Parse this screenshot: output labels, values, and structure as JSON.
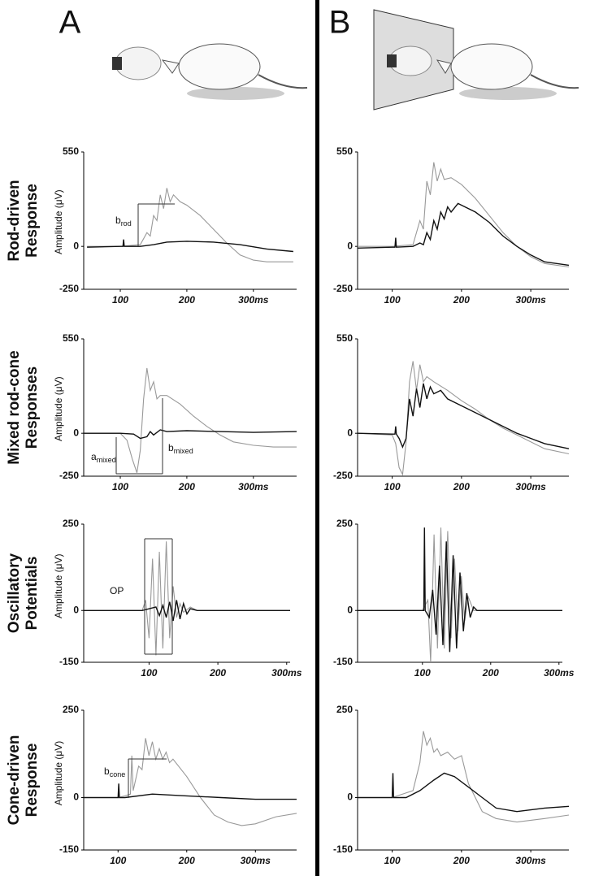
{
  "panels": [
    "A",
    "B"
  ],
  "rows": [
    [
      "Rod-driven",
      "Response"
    ],
    [
      "Mixed rod-cone",
      "Responses"
    ],
    [
      "Oscillatory",
      "Potentials"
    ],
    [
      "Cone-driven",
      "Response"
    ]
  ],
  "chart_data": [
    {
      "type": "line",
      "ylabel": "Amplitude (μV)",
      "xlim": [
        45,
        365
      ],
      "ylim": [
        -250,
        550
      ],
      "yticks": [
        -250,
        0,
        550
      ],
      "xticks": [
        100,
        200,
        {
          "value": 300,
          "label": "300ms"
        }
      ],
      "annotations": [
        {
          "text": "b",
          "sub": "rod"
        }
      ],
      "series": [
        {
          "color": "#999999",
          "x": [
            50,
            100,
            130,
            140,
            145,
            150,
            155,
            160,
            165,
            170,
            175,
            180,
            190,
            200,
            220,
            240,
            260,
            280,
            300,
            320,
            360
          ],
          "values": [
            0,
            0,
            10,
            80,
            60,
            180,
            150,
            300,
            220,
            340,
            260,
            300,
            260,
            240,
            180,
            100,
            20,
            -50,
            -80,
            -90,
            -90
          ]
        },
        {
          "color": "#111111",
          "x": [
            50,
            100,
            104,
            105,
            106,
            130,
            150,
            170,
            200,
            240,
            280,
            320,
            360
          ],
          "values": [
            -5,
            0,
            0,
            40,
            0,
            0,
            10,
            25,
            30,
            25,
            10,
            -15,
            -30
          ]
        }
      ]
    },
    {
      "type": "line",
      "xlim": [
        50,
        355
      ],
      "ylim": [
        -250,
        550
      ],
      "yticks": [
        -250,
        0,
        550
      ],
      "xticks": [
        100,
        200,
        {
          "value": 300,
          "label": "300ms"
        }
      ],
      "series": [
        {
          "color": "#999999",
          "x": [
            50,
            100,
            130,
            140,
            145,
            150,
            155,
            160,
            165,
            170,
            175,
            185,
            200,
            220,
            240,
            260,
            280,
            300,
            320,
            355
          ],
          "values": [
            0,
            0,
            10,
            150,
            100,
            380,
            300,
            490,
            380,
            450,
            390,
            400,
            360,
            280,
            180,
            80,
            0,
            -60,
            -100,
            -120
          ]
        },
        {
          "color": "#111111",
          "x": [
            50,
            100,
            104,
            105,
            106,
            130,
            140,
            145,
            150,
            155,
            160,
            165,
            170,
            175,
            180,
            185,
            195,
            220,
            240,
            260,
            280,
            300,
            320,
            355
          ],
          "values": [
            -10,
            -5,
            -5,
            50,
            -5,
            0,
            20,
            10,
            80,
            40,
            150,
            100,
            200,
            160,
            230,
            200,
            250,
            200,
            140,
            60,
            0,
            -50,
            -90,
            -110
          ]
        }
      ]
    },
    {
      "type": "line",
      "ylabel": "Amplitude (μV)",
      "xlim": [
        45,
        365
      ],
      "ylim": [
        -250,
        550
      ],
      "yticks": [
        -250,
        0,
        550
      ],
      "xticks": [
        100,
        200,
        {
          "value": 300,
          "label": "300ms"
        }
      ],
      "annotations": [
        {
          "text": "a",
          "sub": "mixed"
        },
        {
          "text": "b",
          "sub": "mixed"
        }
      ],
      "series": [
        {
          "color": "#999999",
          "x": [
            45,
            100,
            110,
            118,
            125,
            130,
            135,
            140,
            145,
            150,
            155,
            160,
            170,
            190,
            210,
            230,
            250,
            270,
            300,
            330,
            365
          ],
          "values": [
            0,
            0,
            -40,
            -150,
            -230,
            -100,
            200,
            380,
            250,
            300,
            200,
            220,
            220,
            170,
            100,
            40,
            -10,
            -50,
            -70,
            -80,
            -80
          ]
        },
        {
          "color": "#111111",
          "x": [
            45,
            100,
            120,
            130,
            140,
            145,
            150,
            160,
            170,
            200,
            250,
            300,
            365
          ],
          "values": [
            0,
            0,
            -5,
            -30,
            -20,
            10,
            -10,
            20,
            10,
            15,
            10,
            5,
            10
          ]
        }
      ]
    },
    {
      "type": "line",
      "xlim": [
        50,
        355
      ],
      "ylim": [
        -250,
        550
      ],
      "yticks": [
        -250,
        0,
        550
      ],
      "xticks": [
        100,
        200,
        {
          "value": 300,
          "label": "300ms"
        }
      ],
      "series": [
        {
          "color": "#999999",
          "x": [
            50,
            100,
            105,
            110,
            115,
            120,
            125,
            130,
            135,
            140,
            145,
            150,
            160,
            180,
            200,
            220,
            240,
            260,
            280,
            300,
            320,
            355
          ],
          "values": [
            0,
            -10,
            -60,
            -200,
            -240,
            -50,
            300,
            420,
            250,
            400,
            300,
            330,
            300,
            250,
            190,
            140,
            80,
            30,
            -10,
            -50,
            -90,
            -120
          ]
        },
        {
          "color": "#111111",
          "x": [
            50,
            100,
            104,
            105,
            106,
            110,
            115,
            120,
            125,
            130,
            135,
            140,
            145,
            150,
            155,
            160,
            170,
            180,
            200,
            220,
            240,
            260,
            280,
            300,
            320,
            355
          ],
          "values": [
            0,
            -5,
            -5,
            40,
            -5,
            -30,
            -80,
            -30,
            200,
            100,
            260,
            150,
            290,
            200,
            270,
            230,
            250,
            200,
            160,
            120,
            80,
            40,
            0,
            -30,
            -60,
            -90
          ]
        }
      ]
    },
    {
      "type": "line",
      "ylabel": "Amplitude (μV)",
      "xlim": [
        5,
        305
      ],
      "ylim": [
        -150,
        250
      ],
      "yticks": [
        -150,
        0,
        250
      ],
      "xticks": [
        100,
        200,
        {
          "value": 300,
          "label": "300ms"
        }
      ],
      "annotations": [
        {
          "text": "OP"
        }
      ],
      "series": [
        {
          "color": "#999999",
          "x": [
            5,
            90,
            95,
            100,
            105,
            110,
            115,
            120,
            125,
            130,
            135,
            140,
            145,
            150,
            160,
            170,
            305
          ],
          "values": [
            0,
            0,
            30,
            -80,
            150,
            -130,
            170,
            -110,
            200,
            -80,
            70,
            -20,
            20,
            -5,
            10,
            0,
            0
          ]
        },
        {
          "color": "#111111",
          "x": [
            5,
            90,
            110,
            115,
            120,
            125,
            130,
            135,
            140,
            145,
            150,
            155,
            160,
            170,
            305
          ],
          "values": [
            0,
            0,
            10,
            -15,
            15,
            -20,
            25,
            -30,
            30,
            -25,
            20,
            -10,
            5,
            0,
            0
          ]
        }
      ]
    },
    {
      "type": "line",
      "xlim": [
        5,
        305
      ],
      "ylim": [
        -150,
        250
      ],
      "yticks": [
        -150,
        0,
        250
      ],
      "xticks": [
        100,
        200,
        {
          "value": 300,
          "label": "300ms"
        }
      ],
      "series": [
        {
          "color": "#999999",
          "x": [
            5,
            100,
            108,
            112,
            117,
            122,
            127,
            132,
            137,
            142,
            147,
            152,
            157,
            162,
            167,
            175,
            305
          ],
          "values": [
            0,
            0,
            30,
            -150,
            220,
            -110,
            240,
            -110,
            230,
            -80,
            150,
            -60,
            100,
            -30,
            40,
            0,
            0
          ]
        },
        {
          "color": "#111111",
          "x": [
            5,
            100,
            102,
            103,
            104,
            110,
            115,
            120,
            125,
            130,
            135,
            140,
            145,
            150,
            155,
            160,
            165,
            170,
            175,
            180,
            305
          ],
          "values": [
            0,
            0,
            0,
            240,
            0,
            -20,
            60,
            -70,
            130,
            -100,
            200,
            -120,
            160,
            -110,
            110,
            -60,
            50,
            -20,
            10,
            0,
            0
          ]
        }
      ]
    },
    {
      "type": "line",
      "ylabel": "Amplitude (μV)",
      "xlim": [
        50,
        360
      ],
      "ylim": [
        -150,
        250
      ],
      "yticks": [
        -150,
        0,
        250
      ],
      "xticks": [
        100,
        200,
        {
          "value": 300,
          "label": "300ms"
        }
      ],
      "annotations": [
        {
          "text": "b",
          "sub": "cone"
        }
      ],
      "series": [
        {
          "color": "#999999",
          "x": [
            50,
            100,
            110,
            118,
            120,
            122,
            130,
            135,
            140,
            145,
            150,
            155,
            160,
            165,
            170,
            175,
            180,
            200,
            220,
            240,
            260,
            280,
            300,
            330,
            360
          ],
          "values": [
            0,
            0,
            5,
            10,
            120,
            20,
            90,
            80,
            170,
            120,
            160,
            110,
            140,
            110,
            130,
            100,
            110,
            60,
            0,
            -50,
            -70,
            -80,
            -75,
            -55,
            -45
          ]
        },
        {
          "color": "#111111",
          "x": [
            50,
            100,
            101,
            102,
            110,
            150,
            200,
            250,
            300,
            360
          ],
          "values": [
            0,
            0,
            40,
            0,
            0,
            10,
            5,
            0,
            -5,
            -5
          ]
        }
      ]
    },
    {
      "type": "line",
      "xlim": [
        50,
        355
      ],
      "ylim": [
        -150,
        250
      ],
      "yticks": [
        -150,
        0,
        250
      ],
      "xticks": [
        100,
        200,
        {
          "value": 300,
          "label": "300ms"
        }
      ],
      "series": [
        {
          "color": "#999999",
          "x": [
            50,
            100,
            130,
            140,
            145,
            150,
            155,
            160,
            165,
            170,
            180,
            190,
            200,
            205,
            210,
            220,
            230,
            250,
            280,
            320,
            355
          ],
          "values": [
            0,
            0,
            20,
            100,
            190,
            150,
            170,
            130,
            140,
            120,
            130,
            110,
            120,
            80,
            40,
            0,
            -40,
            -60,
            -70,
            -60,
            -50
          ]
        },
        {
          "color": "#111111",
          "x": [
            50,
            100,
            101,
            102,
            120,
            140,
            160,
            175,
            190,
            210,
            230,
            250,
            280,
            320,
            355
          ],
          "values": [
            0,
            0,
            70,
            0,
            0,
            20,
            50,
            70,
            60,
            30,
            0,
            -30,
            -40,
            -30,
            -25
          ]
        }
      ]
    }
  ]
}
